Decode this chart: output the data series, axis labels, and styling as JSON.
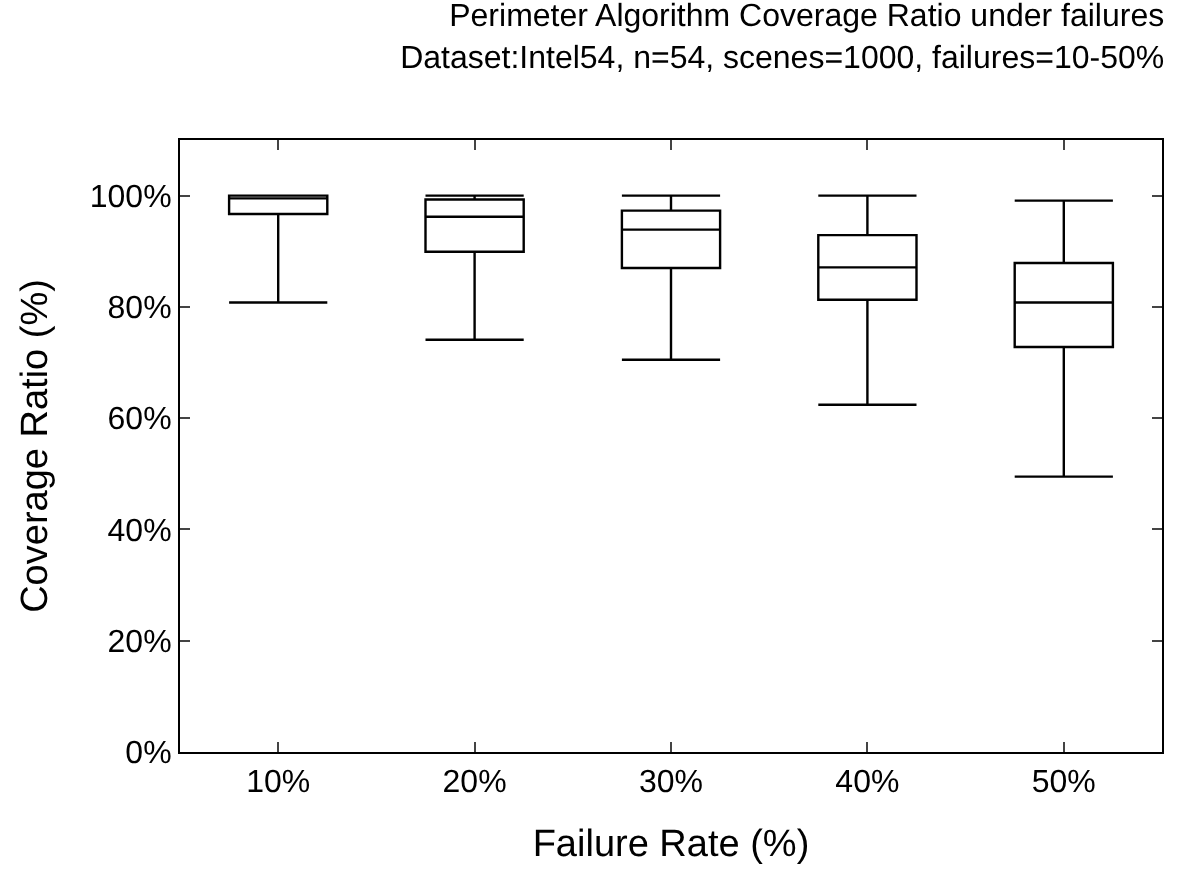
{
  "chart_data": {
    "type": "box",
    "title": "Perimeter Algorithm Coverage Ratio under failures",
    "subtitle": "Dataset:Intel54, n=54, scenes=1000, failures=10-50%",
    "xlabel": "Failure Rate (%)",
    "ylabel": "Coverage Ratio (%)",
    "categories": [
      "10%",
      "20%",
      "30%",
      "40%",
      "50%"
    ],
    "boxes": [
      {
        "low": 80.8,
        "q1": 96.7,
        "median": 99.5,
        "q3": 100,
        "high": 100
      },
      {
        "low": 74.1,
        "q1": 89.9,
        "median": 96.2,
        "q3": 99.3,
        "high": 100
      },
      {
        "low": 70.5,
        "q1": 87.0,
        "median": 93.9,
        "q3": 97.3,
        "high": 100
      },
      {
        "low": 62.4,
        "q1": 81.3,
        "median": 87.1,
        "q3": 92.9,
        "high": 100
      },
      {
        "low": 49.5,
        "q1": 72.8,
        "median": 80.8,
        "q3": 87.9,
        "high": 99.1
      }
    ],
    "color": "#000000",
    "ylim": [
      0,
      110
    ],
    "yticks": [
      {
        "value": 0,
        "label": "0%"
      },
      {
        "value": 20,
        "label": "20%"
      },
      {
        "value": 40,
        "label": "40%"
      },
      {
        "value": 60,
        "label": "60%"
      },
      {
        "value": 80,
        "label": "80%"
      },
      {
        "value": 100,
        "label": "100%"
      }
    ]
  }
}
